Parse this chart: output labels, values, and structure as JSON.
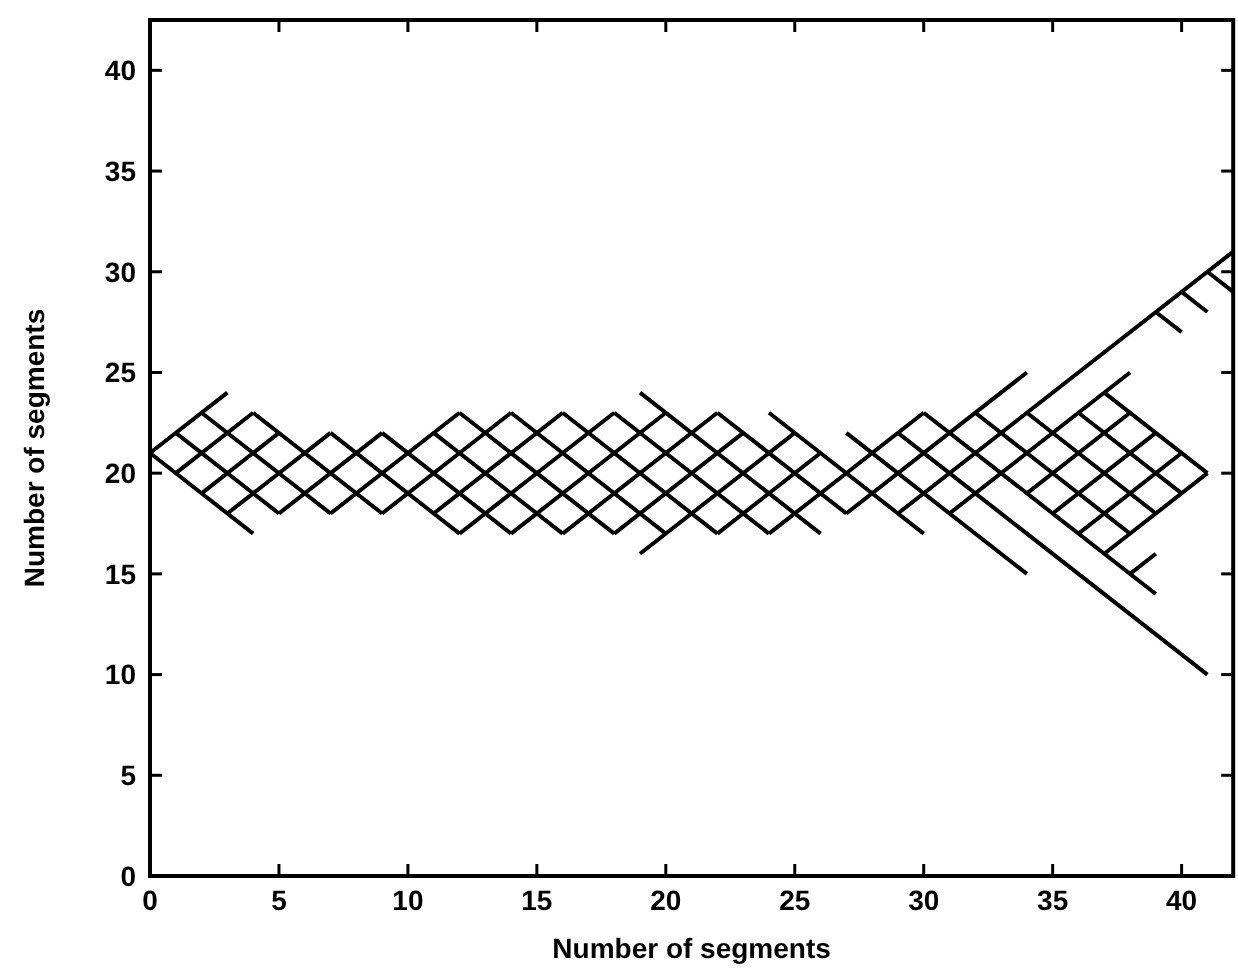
{
  "chart_data": {
    "type": "line",
    "xlabel": "Number of segments",
    "ylabel": "Number of segments",
    "xlim": [
      0,
      42
    ],
    "ylim": [
      0,
      42.5
    ],
    "xticks": [
      0,
      5,
      10,
      15,
      20,
      25,
      30,
      35,
      40
    ],
    "yticks": [
      0,
      5,
      10,
      15,
      20,
      25,
      30,
      35,
      40
    ],
    "grid": false,
    "series": [
      {
        "color": "#000000",
        "x": [
          0,
          3
        ],
        "values": [
          21,
          24
        ]
      },
      {
        "color": "#000000",
        "x": [
          1,
          4
        ],
        "values": [
          20,
          23
        ]
      },
      {
        "color": "#000000",
        "x": [
          2,
          5
        ],
        "values": [
          19,
          22
        ]
      },
      {
        "color": "#000000",
        "x": [
          3,
          7
        ],
        "values": [
          18,
          22
        ]
      },
      {
        "color": "#000000",
        "x": [
          5,
          9
        ],
        "values": [
          18,
          22
        ]
      },
      {
        "color": "#000000",
        "x": [
          7,
          12
        ],
        "values": [
          18,
          23
        ]
      },
      {
        "color": "#000000",
        "x": [
          9,
          14
        ],
        "values": [
          18,
          23
        ]
      },
      {
        "color": "#000000",
        "x": [
          11,
          16
        ],
        "values": [
          18,
          23
        ]
      },
      {
        "color": "#000000",
        "x": [
          12,
          18
        ],
        "values": [
          17,
          23
        ]
      },
      {
        "color": "#000000",
        "x": [
          14,
          20
        ],
        "values": [
          17,
          23
        ]
      },
      {
        "color": "#000000",
        "x": [
          16,
          22
        ],
        "values": [
          17,
          23
        ]
      },
      {
        "color": "#000000",
        "x": [
          18,
          23
        ],
        "values": [
          17,
          22
        ]
      },
      {
        "color": "#000000",
        "x": [
          19,
          25
        ],
        "values": [
          16,
          22
        ]
      },
      {
        "color": "#000000",
        "x": [
          22,
          26
        ],
        "values": [
          17,
          21
        ]
      },
      {
        "color": "#000000",
        "x": [
          24,
          30
        ],
        "values": [
          17,
          23
        ]
      },
      {
        "color": "#000000",
        "x": [
          27,
          34
        ],
        "values": [
          18,
          25
        ]
      },
      {
        "color": "#000000",
        "x": [
          29,
          42
        ],
        "values": [
          18,
          31
        ]
      },
      {
        "color": "#000000",
        "x": [
          31,
          38
        ],
        "values": [
          18,
          25
        ]
      },
      {
        "color": "#000000",
        "x": [
          34,
          38
        ],
        "values": [
          19,
          23
        ]
      },
      {
        "color": "#000000",
        "x": [
          35,
          39
        ],
        "values": [
          18,
          22
        ]
      },
      {
        "color": "#000000",
        "x": [
          36,
          40
        ],
        "values": [
          17,
          21
        ]
      },
      {
        "color": "#000000",
        "x": [
          37,
          41
        ],
        "values": [
          16,
          20
        ]
      },
      {
        "color": "#000000",
        "x": [
          38,
          39
        ],
        "values": [
          15,
          16
        ]
      },
      {
        "color": "#000000",
        "x": [
          0,
          4
        ],
        "values": [
          21,
          17
        ]
      },
      {
        "color": "#000000",
        "x": [
          1,
          5
        ],
        "values": [
          22,
          18
        ]
      },
      {
        "color": "#000000",
        "x": [
          2,
          7
        ],
        "values": [
          23,
          18
        ]
      },
      {
        "color": "#000000",
        "x": [
          4,
          9
        ],
        "values": [
          23,
          18
        ]
      },
      {
        "color": "#000000",
        "x": [
          7,
          12
        ],
        "values": [
          22,
          17
        ]
      },
      {
        "color": "#000000",
        "x": [
          9,
          14
        ],
        "values": [
          22,
          17
        ]
      },
      {
        "color": "#000000",
        "x": [
          11,
          16
        ],
        "values": [
          22,
          17
        ]
      },
      {
        "color": "#000000",
        "x": [
          12,
          18
        ],
        "values": [
          23,
          17
        ]
      },
      {
        "color": "#000000",
        "x": [
          14,
          20
        ],
        "values": [
          23,
          17
        ]
      },
      {
        "color": "#000000",
        "x": [
          16,
          22
        ],
        "values": [
          23,
          17
        ]
      },
      {
        "color": "#000000",
        "x": [
          18,
          24
        ],
        "values": [
          23,
          17
        ]
      },
      {
        "color": "#000000",
        "x": [
          19,
          26
        ],
        "values": [
          24,
          17
        ]
      },
      {
        "color": "#000000",
        "x": [
          22,
          27
        ],
        "values": [
          23,
          18
        ]
      },
      {
        "color": "#000000",
        "x": [
          24,
          30
        ],
        "values": [
          23,
          17
        ]
      },
      {
        "color": "#000000",
        "x": [
          27,
          34
        ],
        "values": [
          22,
          15
        ]
      },
      {
        "color": "#000000",
        "x": [
          29,
          41
        ],
        "values": [
          22,
          10
        ]
      },
      {
        "color": "#000000",
        "x": [
          30,
          39
        ],
        "values": [
          23,
          14
        ]
      },
      {
        "color": "#000000",
        "x": [
          32,
          38
        ],
        "values": [
          23,
          17
        ]
      },
      {
        "color": "#000000",
        "x": [
          34,
          39
        ],
        "values": [
          23,
          18
        ]
      },
      {
        "color": "#000000",
        "x": [
          36,
          40
        ],
        "values": [
          23,
          19
        ]
      },
      {
        "color": "#000000",
        "x": [
          37,
          41
        ],
        "values": [
          24,
          20
        ]
      },
      {
        "color": "#000000",
        "x": [
          39,
          40
        ],
        "values": [
          28,
          27
        ]
      },
      {
        "color": "#000000",
        "x": [
          40,
          41
        ],
        "values": [
          29,
          28
        ]
      },
      {
        "color": "#000000",
        "x": [
          41,
          42
        ],
        "values": [
          30,
          29
        ]
      }
    ]
  }
}
